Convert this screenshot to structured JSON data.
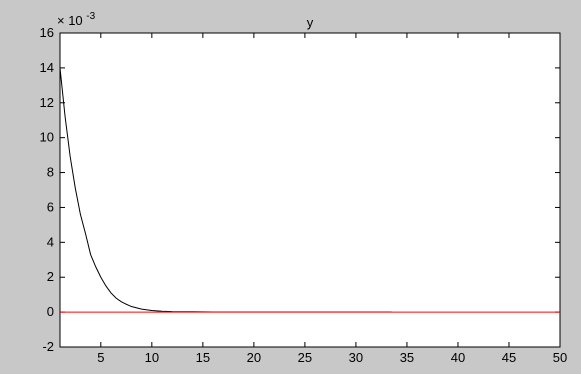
{
  "chart_data": {
    "type": "line",
    "title": "y",
    "xlabel": "",
    "ylabel": "",
    "y_exponent_label": {
      "base": "× 10",
      "power": "-3"
    },
    "xlim": [
      1,
      50
    ],
    "ylim": [
      -2,
      16
    ],
    "x_ticks": [
      5,
      10,
      15,
      20,
      25,
      30,
      35,
      40,
      45,
      50
    ],
    "y_ticks": [
      -2,
      0,
      2,
      4,
      6,
      8,
      10,
      12,
      14,
      16
    ],
    "grid": false,
    "series": [
      {
        "color": "#000000",
        "x": [
          1,
          1.5,
          2,
          2.5,
          3,
          3.5,
          4,
          4.5,
          5,
          5.5,
          6,
          6.5,
          7,
          7.5,
          8,
          9,
          10,
          11,
          12,
          14,
          16,
          20,
          25,
          30,
          33.5
        ],
        "y": [
          14,
          11.2,
          8.9,
          7.1,
          5.6,
          4.5,
          3.3,
          2.6,
          2.0,
          1.5,
          1.1,
          0.8,
          0.6,
          0.45,
          0.32,
          0.17,
          0.09,
          0.05,
          0.03,
          0.02,
          0.01,
          0.01,
          0.01,
          0.01,
          0.01
        ]
      },
      {
        "color": "#ff0000",
        "x": [
          1,
          50
        ],
        "y": [
          0,
          0
        ]
      }
    ]
  }
}
